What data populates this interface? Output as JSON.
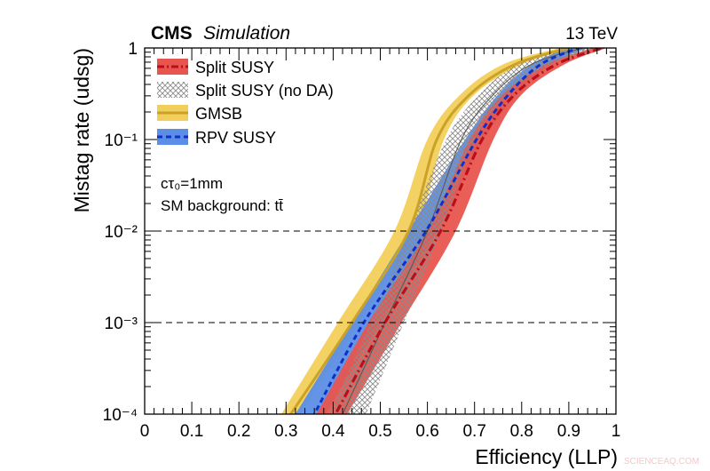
{
  "header": {
    "experiment": "CMS",
    "subtitle": "Simulation",
    "energy": "13 TeV"
  },
  "annotations": [
    "cτ₀=1mm",
    "SM background: tt̄"
  ],
  "watermark": "SCIENCEAQ.COM",
  "colors": {
    "split_susy_band": "#e8554e",
    "split_susy_line": "#b8101a",
    "no_da_hatch": "#8a8a8a",
    "gmsb_band": "#f2cf5a",
    "gmsb_line": "#c9a227",
    "rpv_band": "#5b8ee6",
    "rpv_line": "#1030c8"
  },
  "chart_data": {
    "type": "line",
    "xlabel": "Efficiency (LLP)",
    "ylabel": "Mistag rate (udsg)",
    "xlim": [
      0,
      1
    ],
    "ylim": [
      0.0001,
      1
    ],
    "yscale": "log",
    "x_ticks": [
      "0",
      "0.1",
      "0.2",
      "0.3",
      "0.4",
      "0.5",
      "0.6",
      "0.7",
      "0.8",
      "0.9",
      "1"
    ],
    "y_ticks": [
      {
        "value": 0.0001,
        "label": "10⁻⁴"
      },
      {
        "value": 0.001,
        "label": "10⁻³"
      },
      {
        "value": 0.01,
        "label": "10⁻²"
      },
      {
        "value": 0.1,
        "label": "10⁻¹"
      },
      {
        "value": 1,
        "label": "1"
      }
    ],
    "reference_lines_y": [
      0.01,
      0.001
    ],
    "legend_position": "top-left",
    "mistag_points": [
      0.0001,
      0.001,
      0.01,
      0.1,
      0.31,
      0.66,
      1
    ],
    "series": [
      {
        "name": "Split SUSY",
        "style": "dash-dot",
        "band": "filled",
        "efficiency": [
          0.405,
          0.51,
          0.628,
          0.716,
          0.785,
          0.873,
          0.97
        ],
        "band_low": [
          0.365,
          0.475,
          0.6,
          0.69,
          0.76,
          0.85,
          0.95
        ],
        "band_high": [
          0.43,
          0.545,
          0.66,
          0.74,
          0.8,
          0.89,
          0.98
        ]
      },
      {
        "name": "Split SUSY (no DA)",
        "style": "thin-solid",
        "band": "hatched",
        "efficiency": [
          0.42,
          0.51,
          0.6,
          0.672,
          0.74,
          0.82,
          0.93
        ],
        "band_low": [
          0.39,
          0.48,
          0.56,
          0.64,
          0.71,
          0.79,
          0.9
        ],
        "band_high": [
          0.47,
          0.55,
          0.63,
          0.7,
          0.77,
          0.86,
          0.96
        ]
      },
      {
        "name": "GMSB",
        "style": "solid",
        "band": "filled",
        "efficiency": [
          0.31,
          0.44,
          0.56,
          0.62,
          0.69,
          0.785,
          0.9
        ],
        "band_low": [
          0.29,
          0.41,
          0.53,
          0.6,
          0.67,
          0.76,
          0.88
        ],
        "band_high": [
          0.33,
          0.455,
          0.575,
          0.635,
          0.7,
          0.8,
          0.91
        ]
      },
      {
        "name": "RPV SUSY",
        "style": "dashed",
        "band": "filled",
        "efficiency": [
          0.36,
          0.465,
          0.597,
          0.704,
          0.772,
          0.84,
          0.92
        ],
        "band_low": [
          0.32,
          0.44,
          0.56,
          0.68,
          0.75,
          0.82,
          0.9
        ],
        "band_high": [
          0.385,
          0.5,
          0.62,
          0.72,
          0.79,
          0.86,
          0.94
        ]
      }
    ]
  }
}
